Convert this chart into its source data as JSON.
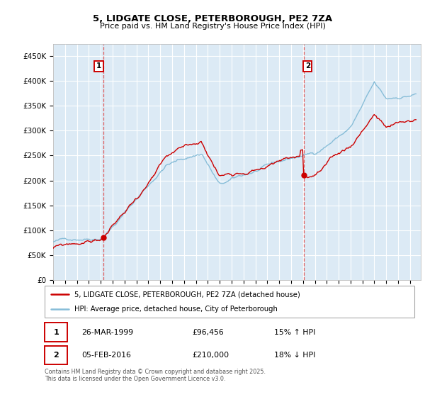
{
  "title": "5, LIDGATE CLOSE, PETERBOROUGH, PE2 7ZA",
  "subtitle": "Price paid vs. HM Land Registry's House Price Index (HPI)",
  "ylim": [
    0,
    475000
  ],
  "yticks": [
    0,
    50000,
    100000,
    150000,
    200000,
    250000,
    300000,
    350000,
    400000,
    450000
  ],
  "ytick_labels": [
    "£0",
    "£50K",
    "£100K",
    "£150K",
    "£200K",
    "£250K",
    "£300K",
    "£350K",
    "£400K",
    "£450K"
  ],
  "annotation1": {
    "label": "1",
    "date": "26-MAR-1999",
    "price": "£96,456",
    "pct": "15% ↑ HPI",
    "year": 1999.23
  },
  "annotation2": {
    "label": "2",
    "date": "05-FEB-2016",
    "price": "£210,000",
    "pct": "18% ↓ HPI",
    "year": 2016.09
  },
  "legend_red": "5, LIDGATE CLOSE, PETERBOROUGH, PE2 7ZA (detached house)",
  "legend_blue": "HPI: Average price, detached house, City of Peterborough",
  "footer": "Contains HM Land Registry data © Crown copyright and database right 2025.\nThis data is licensed under the Open Government Licence v3.0.",
  "red_color": "#cc0000",
  "blue_color": "#87bdd8",
  "chart_bg_color": "#dceaf5",
  "vline_color": "#dd4444",
  "grid_color": "#ffffff",
  "sale1_price": 96456,
  "sale2_price": 210000
}
